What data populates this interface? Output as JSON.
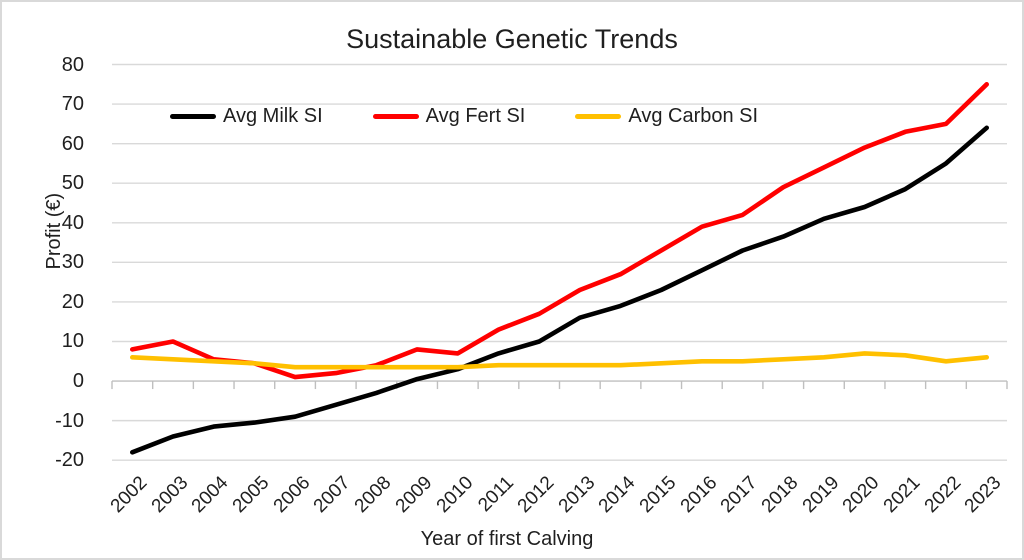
{
  "frame": {
    "background": "#ffffff",
    "border_color": "#d9d9d9",
    "gridline_color": "#d9d9d9",
    "axis_color": "#bfbfbf"
  },
  "chart_data": {
    "type": "line",
    "title": "Sustainable Genetic Trends",
    "xlabel": "Year of first Calving",
    "ylabel": "Profit (€)",
    "ylim": [
      -20,
      80
    ],
    "ytick_interval": 10,
    "yticks": [
      80,
      70,
      60,
      50,
      40,
      30,
      20,
      10,
      0,
      -10,
      -20
    ],
    "grid": true,
    "legend_position": "top",
    "x_labels_rotation_deg": -45,
    "categories": [
      "2002",
      "2003",
      "2004",
      "2005",
      "2006",
      "2007",
      "2008",
      "2009",
      "2010",
      "2011",
      "2012",
      "2013",
      "2014",
      "2015",
      "2016",
      "2017",
      "2018",
      "2019",
      "2020",
      "2021",
      "2022",
      "2023"
    ],
    "series": [
      {
        "name": "Avg Milk SI",
        "color": "#000000",
        "values": [
          -18,
          -14,
          -11.5,
          -10.5,
          -9,
          -6,
          -3,
          0.5,
          3,
          7,
          10,
          16,
          19,
          23,
          28,
          33,
          36.5,
          41,
          44,
          48.5,
          55,
          64
        ]
      },
      {
        "name": "Avg Fert SI",
        "color": "#ff0000",
        "values": [
          8,
          10,
          5.5,
          4.5,
          1,
          2,
          4,
          8,
          7,
          13,
          17,
          23,
          27,
          33,
          39,
          42,
          49,
          54,
          59,
          63,
          65,
          75
        ]
      },
      {
        "name": "Avg Carbon SI",
        "color": "#ffc000",
        "values": [
          6,
          5.5,
          5,
          4.5,
          3.5,
          3.5,
          3.5,
          3.5,
          3.5,
          4,
          4,
          4,
          4,
          4.5,
          5,
          5,
          5.5,
          6,
          7,
          6.5,
          5,
          6
        ]
      }
    ]
  }
}
